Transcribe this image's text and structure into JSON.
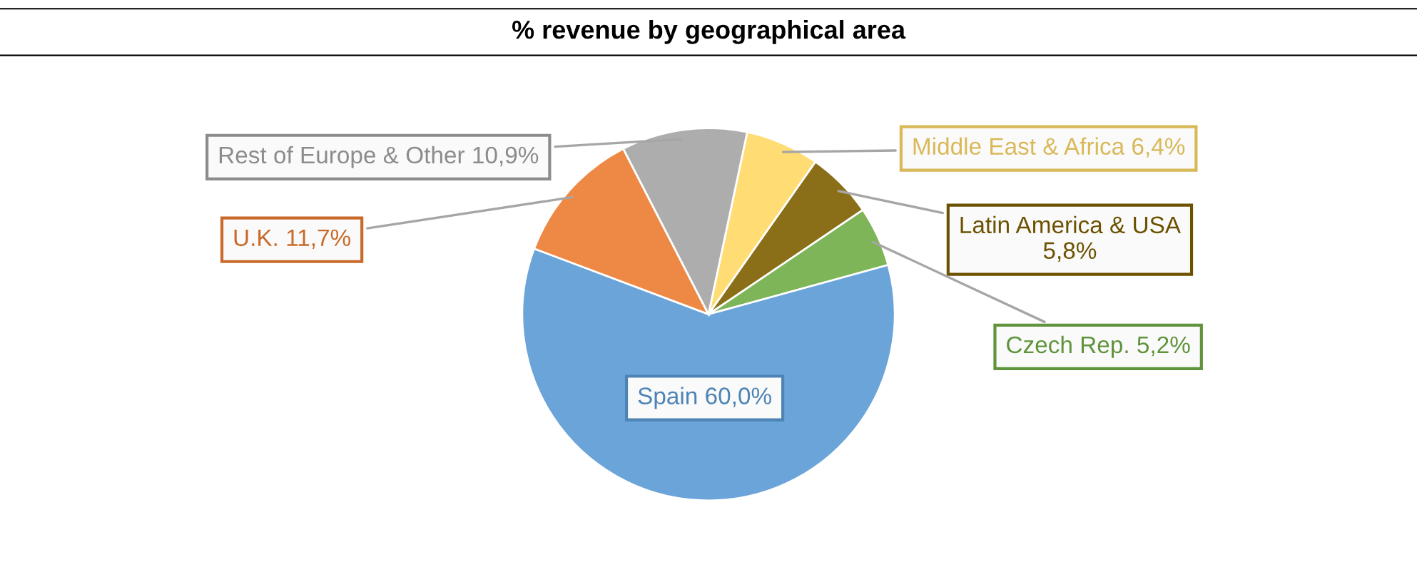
{
  "chart_data": {
    "type": "pie",
    "title": "% revenue by geographical area",
    "categories": [
      "Middle East & Africa",
      "Latin America & USA",
      "Czech Rep.",
      "Spain",
      "U.K.",
      "Rest of Europe & Other"
    ],
    "values": [
      6.4,
      5.8,
      5.2,
      60.0,
      11.7,
      10.9
    ],
    "value_labels": [
      "6,4%",
      "5,8%",
      "5,2%",
      "60,0%",
      "11,7%",
      "10,9%"
    ],
    "colors": [
      "#ffd966",
      "#7f6000",
      "#70ad47",
      "#5b9bd5",
      "#ed7d31",
      "#a5a5a5"
    ],
    "legend": false
  }
}
